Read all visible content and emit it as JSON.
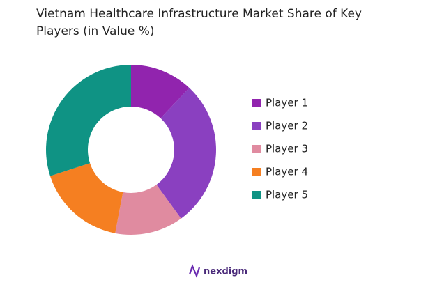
{
  "chart_data": {
    "type": "donut",
    "title": "Vietnam Healthcare Infrastructure Market Share of Key Players (in Value %)",
    "categories": [
      "Player 1",
      "Player 2",
      "Player 3",
      "Player 4",
      "Player 5"
    ],
    "values": [
      12,
      28,
      13,
      17,
      30
    ],
    "colors": [
      "#9124ae",
      "#8a40c0",
      "#e08ba0",
      "#f57f21",
      "#0f9384"
    ],
    "legend": "right"
  },
  "footer": {
    "logo": "nexdigm"
  }
}
